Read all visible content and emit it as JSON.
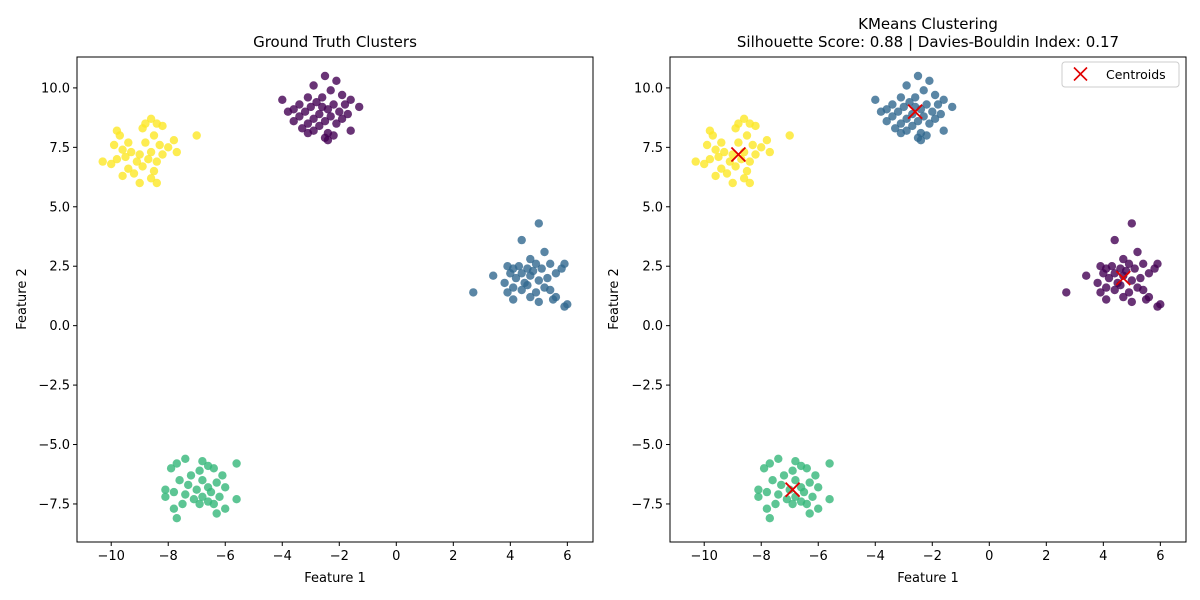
{
  "chart_data": [
    {
      "type": "scatter",
      "title": "Ground Truth Clusters",
      "subtitle": "",
      "xlabel": "Feature 1",
      "ylabel": "Feature 2",
      "xlim": [
        -11.2,
        6.9
      ],
      "ylim": [
        -9.1,
        11.3
      ],
      "xticks": [
        -10,
        -8,
        -6,
        -4,
        -2,
        0,
        2,
        4,
        6
      ],
      "yticks": [
        -7.5,
        -5.0,
        -2.5,
        0.0,
        2.5,
        5.0,
        7.5,
        10.0
      ],
      "ytick_labels": [
        "−7.5",
        "−5.0",
        "−2.5",
        "0.0",
        "2.5",
        "5.0",
        "7.5",
        "10.0"
      ],
      "xtick_labels": [
        "−10",
        "−8",
        "−6",
        "−4",
        "−2",
        "0",
        "2",
        "4",
        "6"
      ],
      "grid": false,
      "legend": null,
      "series": [
        {
          "color": "#440154",
          "points": [
            [
              -2.5,
              10.5
            ],
            [
              -2.1,
              10.3
            ],
            [
              -2.9,
              10.1
            ],
            [
              -2.3,
              9.9
            ],
            [
              -1.9,
              9.7
            ],
            [
              -3.1,
              9.6
            ],
            [
              -2.6,
              9.6
            ],
            [
              -4.0,
              9.5
            ],
            [
              -1.6,
              9.5
            ],
            [
              -2.8,
              9.4
            ],
            [
              -3.4,
              9.3
            ],
            [
              -2.2,
              9.3
            ],
            [
              -1.8,
              9.3
            ],
            [
              -3.0,
              9.2
            ],
            [
              -2.6,
              9.2
            ],
            [
              -1.3,
              9.2
            ],
            [
              -3.6,
              9.1
            ],
            [
              -2.4,
              9.1
            ],
            [
              -2.0,
              9.0
            ],
            [
              -3.2,
              9.0
            ],
            [
              -3.8,
              9.0
            ],
            [
              -2.7,
              8.9
            ],
            [
              -1.7,
              8.9
            ],
            [
              -3.4,
              8.8
            ],
            [
              -2.3,
              8.8
            ],
            [
              -2.9,
              8.7
            ],
            [
              -1.9,
              8.7
            ],
            [
              -3.6,
              8.6
            ],
            [
              -2.5,
              8.6
            ],
            [
              -3.1,
              8.5
            ],
            [
              -2.1,
              8.5
            ],
            [
              -2.7,
              8.4
            ],
            [
              -3.3,
              8.3
            ],
            [
              -1.6,
              8.2
            ],
            [
              -2.9,
              8.2
            ],
            [
              -2.4,
              8.1
            ],
            [
              -3.1,
              8.1
            ],
            [
              -2.2,
              8.0
            ],
            [
              -2.5,
              7.9
            ],
            [
              -2.4,
              7.8
            ]
          ]
        },
        {
          "color": "#31688e",
          "points": [
            [
              5.0,
              4.3
            ],
            [
              4.4,
              3.6
            ],
            [
              5.2,
              3.1
            ],
            [
              4.7,
              2.8
            ],
            [
              5.9,
              2.6
            ],
            [
              3.9,
              2.5
            ],
            [
              4.3,
              2.5
            ],
            [
              4.9,
              2.6
            ],
            [
              5.4,
              2.6
            ],
            [
              4.1,
              2.4
            ],
            [
              4.6,
              2.4
            ],
            [
              5.1,
              2.4
            ],
            [
              5.8,
              2.4
            ],
            [
              3.4,
              2.1
            ],
            [
              4.0,
              2.2
            ],
            [
              4.4,
              2.2
            ],
            [
              4.8,
              2.3
            ],
            [
              5.6,
              2.2
            ],
            [
              4.2,
              2.0
            ],
            [
              4.7,
              2.1
            ],
            [
              5.3,
              2.0
            ],
            [
              3.8,
              1.8
            ],
            [
              4.5,
              1.8
            ],
            [
              5.0,
              1.9
            ],
            [
              4.1,
              1.6
            ],
            [
              4.6,
              1.7
            ],
            [
              5.2,
              1.6
            ],
            [
              3.9,
              1.4
            ],
            [
              4.4,
              1.5
            ],
            [
              4.9,
              1.4
            ],
            [
              5.4,
              1.5
            ],
            [
              2.7,
              1.4
            ],
            [
              4.7,
              1.2
            ],
            [
              4.1,
              1.1
            ],
            [
              5.0,
              1.0
            ],
            [
              5.5,
              1.1
            ],
            [
              5.6,
              1.2
            ],
            [
              5.9,
              0.8
            ],
            [
              6.0,
              0.9
            ]
          ]
        },
        {
          "color": "#35b779",
          "points": [
            [
              -7.4,
              -5.6
            ],
            [
              -5.6,
              -5.8
            ],
            [
              -6.8,
              -5.7
            ],
            [
              -7.7,
              -5.8
            ],
            [
              -6.6,
              -5.9
            ],
            [
              -7.9,
              -6.0
            ],
            [
              -6.9,
              -6.1
            ],
            [
              -6.4,
              -6.0
            ],
            [
              -7.2,
              -6.3
            ],
            [
              -6.1,
              -6.3
            ],
            [
              -7.6,
              -6.5
            ],
            [
              -6.8,
              -6.5
            ],
            [
              -6.3,
              -6.6
            ],
            [
              -7.3,
              -6.7
            ],
            [
              -6.6,
              -6.8
            ],
            [
              -6.0,
              -6.8
            ],
            [
              -8.1,
              -6.9
            ],
            [
              -7.0,
              -6.9
            ],
            [
              -7.8,
              -7.0
            ],
            [
              -6.5,
              -7.0
            ],
            [
              -7.4,
              -7.1
            ],
            [
              -6.8,
              -7.2
            ],
            [
              -6.2,
              -7.2
            ],
            [
              -8.1,
              -7.2
            ],
            [
              -7.1,
              -7.3
            ],
            [
              -6.6,
              -7.4
            ],
            [
              -5.6,
              -7.3
            ],
            [
              -7.5,
              -7.5
            ],
            [
              -6.9,
              -7.5
            ],
            [
              -6.4,
              -7.5
            ],
            [
              -7.8,
              -7.7
            ],
            [
              -6.0,
              -7.7
            ],
            [
              -6.3,
              -7.9
            ],
            [
              -7.7,
              -8.1
            ]
          ]
        },
        {
          "color": "#fde725",
          "points": [
            [
              -8.6,
              8.7
            ],
            [
              -8.4,
              8.5
            ],
            [
              -8.8,
              8.5
            ],
            [
              -8.2,
              8.4
            ],
            [
              -8.9,
              8.3
            ],
            [
              -9.8,
              8.2
            ],
            [
              -7.0,
              8.0
            ],
            [
              -9.7,
              8.0
            ],
            [
              -8.5,
              8.0
            ],
            [
              -7.8,
              7.8
            ],
            [
              -8.8,
              7.7
            ],
            [
              -9.4,
              7.7
            ],
            [
              -9.9,
              7.6
            ],
            [
              -8.3,
              7.6
            ],
            [
              -8.0,
              7.5
            ],
            [
              -9.6,
              7.4
            ],
            [
              -9.3,
              7.3
            ],
            [
              -7.7,
              7.3
            ],
            [
              -8.6,
              7.3
            ],
            [
              -9.0,
              7.2
            ],
            [
              -8.2,
              7.2
            ],
            [
              -9.5,
              7.1
            ],
            [
              -8.7,
              7.0
            ],
            [
              -9.8,
              7.0
            ],
            [
              -10.3,
              6.9
            ],
            [
              -9.1,
              6.9
            ],
            [
              -8.4,
              6.9
            ],
            [
              -10.0,
              6.8
            ],
            [
              -8.9,
              6.7
            ],
            [
              -9.4,
              6.6
            ],
            [
              -8.5,
              6.5
            ],
            [
              -9.2,
              6.4
            ],
            [
              -9.6,
              6.3
            ],
            [
              -8.6,
              6.2
            ],
            [
              -9.0,
              6.0
            ],
            [
              -8.4,
              6.0
            ]
          ]
        }
      ]
    },
    {
      "type": "scatter",
      "title": "KMeans Clustering",
      "subtitle": "Silhouette Score: 0.88 | Davies-Bouldin Index: 0.17",
      "xlabel": "Feature 1",
      "ylabel": "Feature 2",
      "xlim": [
        -11.2,
        6.9
      ],
      "ylim": [
        -9.1,
        11.3
      ],
      "xticks": [
        -10,
        -8,
        -6,
        -4,
        -2,
        0,
        2,
        4,
        6
      ],
      "yticks": [
        -7.5,
        -5.0,
        -2.5,
        0.0,
        2.5,
        5.0,
        7.5,
        10.0
      ],
      "ytick_labels": [
        "−7.5",
        "−5.0",
        "−2.5",
        "0.0",
        "2.5",
        "5.0",
        "7.5",
        "10.0"
      ],
      "xtick_labels": [
        "−10",
        "−8",
        "−6",
        "−4",
        "−2",
        "0",
        "2",
        "4",
        "6"
      ],
      "grid": false,
      "legend": {
        "position": "top-right",
        "entries": [
          "Centroids"
        ]
      },
      "series": [
        {
          "color": "#440154",
          "same_points_as": "ground_truth_1"
        },
        {
          "color": "#31688e",
          "same_points_as": "ground_truth_0"
        },
        {
          "color": "#35b779",
          "same_points_as": "ground_truth_2"
        },
        {
          "color": "#fde725",
          "same_points_as": "ground_truth_3"
        }
      ],
      "centroids": {
        "name": "Centroids",
        "color": "#e00000",
        "marker": "x",
        "points": [
          [
            -8.8,
            7.2
          ],
          [
            -2.6,
            9.0
          ],
          [
            4.7,
            2.0
          ],
          [
            -6.9,
            -6.9
          ]
        ]
      }
    }
  ]
}
